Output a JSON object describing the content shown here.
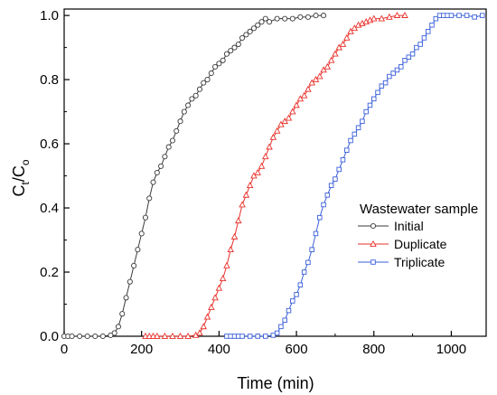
{
  "chart_data": {
    "type": "line",
    "xlabel": "Time (min)",
    "ylabel_main": "C",
    "ylabel_sub1": "t",
    "ylabel_mid": "/C",
    "ylabel_sub2": "o",
    "xlim": [
      0,
      1090
    ],
    "ylim": [
      0,
      1.02
    ],
    "xticks": [
      0,
      200,
      400,
      600,
      800,
      1000
    ],
    "yticks": [
      0.0,
      0.2,
      0.4,
      0.6,
      0.8,
      1.0
    ],
    "xtick_labels": [
      "0",
      "200",
      "400",
      "600",
      "800",
      "1000"
    ],
    "ytick_labels": [
      "0.0",
      "0.2",
      "0.4",
      "0.6",
      "0.8",
      "1.0"
    ],
    "legend_title": "Wastewater sample",
    "legend_position": "right",
    "series": [
      {
        "name": "Initial",
        "marker": "circle",
        "color": "#3a3a3a",
        "x": [
          0,
          10,
          20,
          40,
          60,
          80,
          100,
          120,
          130,
          140,
          150,
          160,
          170,
          180,
          190,
          200,
          210,
          220,
          230,
          240,
          250,
          260,
          270,
          280,
          290,
          300,
          310,
          320,
          330,
          340,
          350,
          360,
          370,
          380,
          390,
          400,
          410,
          420,
          430,
          440,
          450,
          460,
          470,
          480,
          490,
          500,
          510,
          520,
          530,
          550,
          570,
          590,
          610,
          630,
          650,
          670
        ],
        "y": [
          0,
          0,
          0,
          0,
          0,
          0,
          0,
          0.003,
          0.01,
          0.03,
          0.07,
          0.12,
          0.17,
          0.22,
          0.27,
          0.32,
          0.37,
          0.43,
          0.48,
          0.51,
          0.53,
          0.56,
          0.59,
          0.61,
          0.64,
          0.67,
          0.7,
          0.72,
          0.74,
          0.75,
          0.77,
          0.79,
          0.8,
          0.82,
          0.84,
          0.85,
          0.86,
          0.88,
          0.89,
          0.9,
          0.91,
          0.93,
          0.94,
          0.95,
          0.96,
          0.97,
          0.98,
          0.99,
          0.98,
          0.99,
          0.99,
          0.99,
          0.995,
          0.995,
          1.0,
          1.0
        ]
      },
      {
        "name": "Duplicate",
        "marker": "triangle",
        "color": "#e8302a",
        "x": [
          210,
          220,
          230,
          240,
          260,
          280,
          300,
          320,
          340,
          350,
          360,
          370,
          380,
          390,
          400,
          410,
          420,
          430,
          440,
          450,
          460,
          470,
          480,
          490,
          500,
          510,
          520,
          530,
          540,
          550,
          560,
          570,
          580,
          590,
          600,
          610,
          620,
          630,
          640,
          650,
          660,
          670,
          680,
          690,
          700,
          710,
          720,
          730,
          740,
          750,
          760,
          770,
          780,
          790,
          800,
          820,
          840,
          860,
          880
        ],
        "y": [
          0,
          0,
          0,
          0,
          0,
          0,
          0,
          0,
          0.003,
          0.01,
          0.03,
          0.06,
          0.09,
          0.12,
          0.15,
          0.18,
          0.22,
          0.27,
          0.31,
          0.36,
          0.41,
          0.44,
          0.47,
          0.5,
          0.51,
          0.53,
          0.56,
          0.59,
          0.62,
          0.64,
          0.66,
          0.67,
          0.68,
          0.7,
          0.72,
          0.74,
          0.75,
          0.77,
          0.79,
          0.8,
          0.81,
          0.83,
          0.84,
          0.86,
          0.88,
          0.9,
          0.91,
          0.93,
          0.95,
          0.96,
          0.97,
          0.975,
          0.98,
          0.985,
          0.99,
          0.99,
          0.995,
          1.0,
          1.0
        ]
      },
      {
        "name": "Triplicate",
        "marker": "square",
        "color": "#3a5fd9",
        "x": [
          420,
          430,
          440,
          450,
          460,
          480,
          500,
          520,
          540,
          550,
          560,
          570,
          580,
          590,
          600,
          610,
          620,
          630,
          640,
          650,
          660,
          670,
          680,
          690,
          700,
          710,
          720,
          730,
          740,
          750,
          760,
          770,
          780,
          790,
          800,
          810,
          820,
          830,
          840,
          850,
          860,
          870,
          880,
          890,
          900,
          910,
          920,
          930,
          940,
          950,
          960,
          970,
          980,
          990,
          1000,
          1020,
          1040,
          1060,
          1080
        ],
        "y": [
          0,
          0,
          0,
          0,
          0,
          0,
          0,
          0,
          0.003,
          0.01,
          0.03,
          0.05,
          0.08,
          0.11,
          0.13,
          0.16,
          0.2,
          0.23,
          0.27,
          0.32,
          0.37,
          0.41,
          0.44,
          0.47,
          0.49,
          0.52,
          0.55,
          0.58,
          0.61,
          0.63,
          0.65,
          0.67,
          0.7,
          0.72,
          0.74,
          0.76,
          0.78,
          0.79,
          0.81,
          0.82,
          0.83,
          0.84,
          0.86,
          0.87,
          0.88,
          0.9,
          0.91,
          0.93,
          0.95,
          0.97,
          0.99,
          1.0,
          1.0,
          1.0,
          1.0,
          1.0,
          1.0,
          0.995,
          1.0
        ]
      }
    ]
  }
}
